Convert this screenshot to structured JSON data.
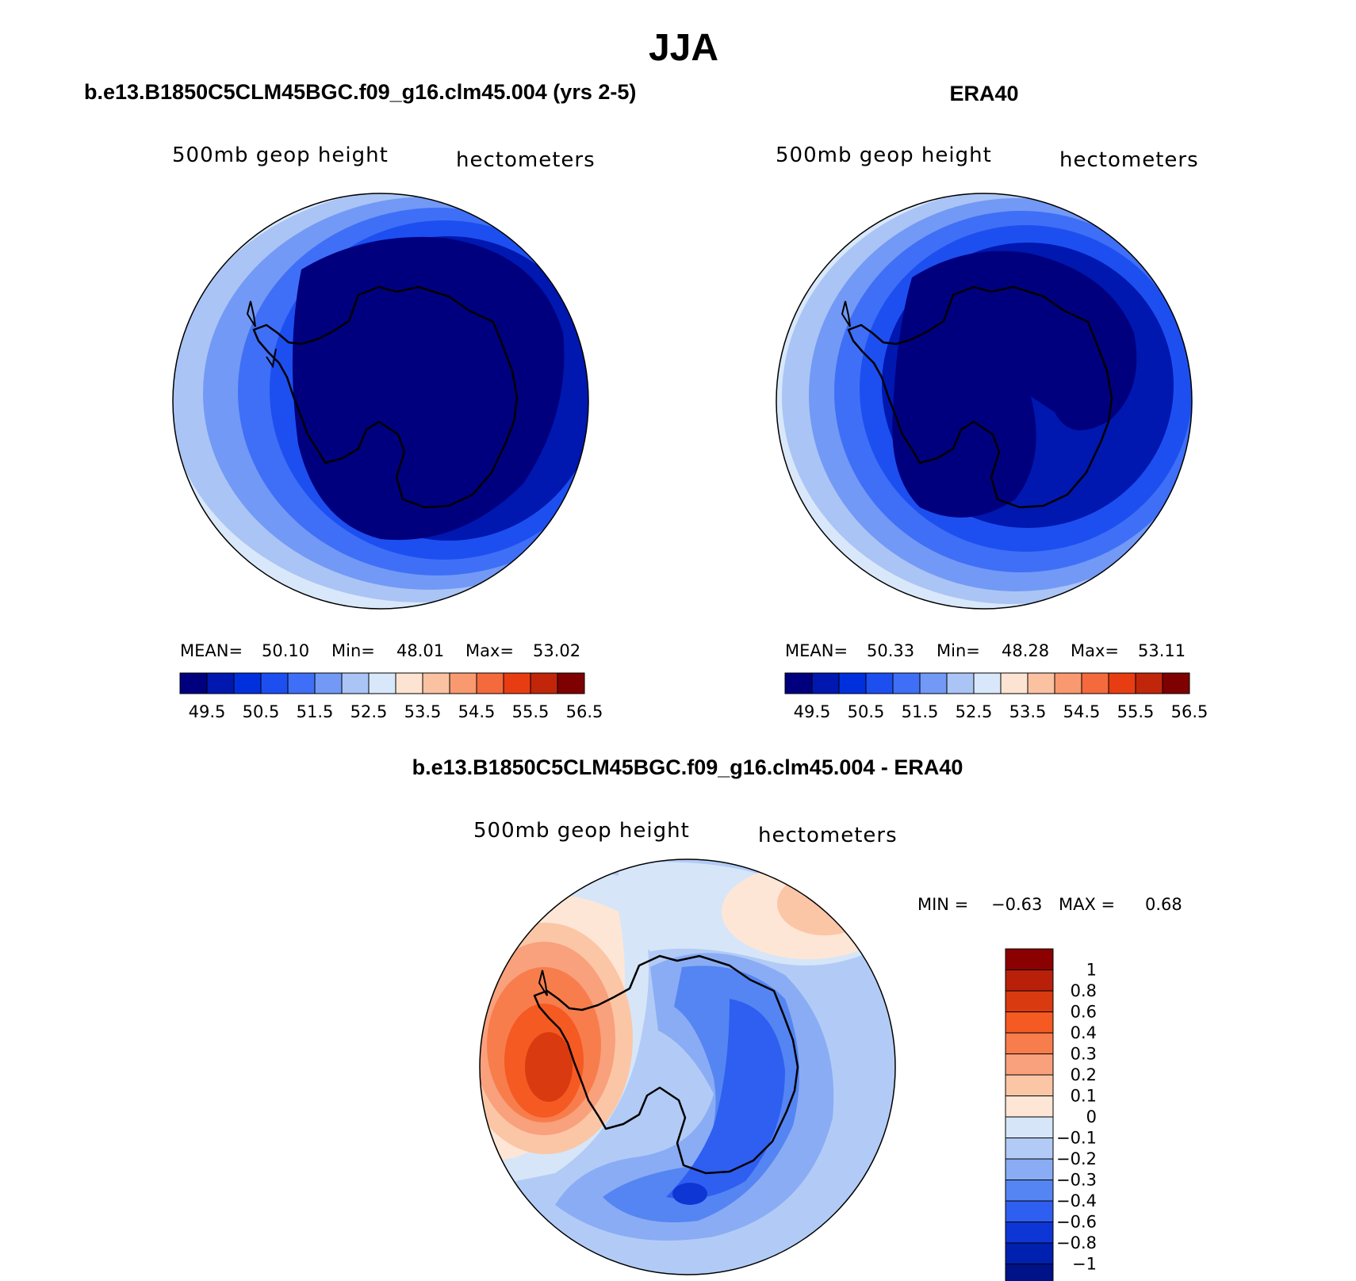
{
  "figure": {
    "title": "JJA"
  },
  "panels": {
    "model": {
      "title": "b.e13.B1850C5CLM45BGC.f09_g16.clm45.004 (yrs 2-5)",
      "variable": "500mb geop height",
      "units": "hectometers",
      "mean_label": "MEAN=",
      "mean": "50.10",
      "min_label": "Min=",
      "min": "48.01",
      "max_label": "Max=",
      "max": "53.02"
    },
    "obs": {
      "title": "ERA40",
      "variable": "500mb geop height",
      "units": "hectometers",
      "mean_label": "MEAN=",
      "mean": "50.33",
      "min_label": "Min=",
      "min": "48.28",
      "max_label": "Max=",
      "max": "53.11"
    },
    "diff": {
      "title": "b.e13.B1850C5CLM45BGC.f09_g16.clm45.004 - ERA40",
      "variable": "500mb geop height",
      "units": "hectometers",
      "min_label": "MIN =",
      "min": "−0.63",
      "max_label": "MAX =",
      "max": "0.68"
    }
  },
  "chart_data": [
    {
      "type": "heatmap",
      "projection": "south-polar-stereographic",
      "title": "b.e13.B1850C5CLM45BGC.f09_g16.clm45.004 (yrs 2-5)",
      "variable": "500mb geop height",
      "units": "hectometers",
      "stats": {
        "mean": 50.1,
        "min": 48.01,
        "max": 53.02
      },
      "levels": [
        49.5,
        50,
        50.5,
        51,
        51.5,
        52,
        52.5,
        53,
        53.5,
        54,
        54.5,
        55,
        55.5,
        56,
        56.5
      ],
      "tick_labels": [
        "49.5",
        "50.5",
        "51.5",
        "52.5",
        "53.5",
        "54.5",
        "55.5",
        "56.5"
      ],
      "colors": [
        "#00007f",
        "#0018b0",
        "#0030dd",
        "#1d4ff0",
        "#3f6ff7",
        "#7299f5",
        "#aac4f5",
        "#d8e8fa",
        "#fde4d2",
        "#fbc2a2",
        "#f99970",
        "#f46a3d",
        "#e83d12",
        "#c1260a",
        "#7f0000"
      ]
    },
    {
      "type": "heatmap",
      "projection": "south-polar-stereographic",
      "title": "ERA40",
      "variable": "500mb geop height",
      "units": "hectometers",
      "stats": {
        "mean": 50.33,
        "min": 48.28,
        "max": 53.11
      },
      "levels": [
        49.5,
        50,
        50.5,
        51,
        51.5,
        52,
        52.5,
        53,
        53.5,
        54,
        54.5,
        55,
        55.5,
        56,
        56.5
      ],
      "tick_labels": [
        "49.5",
        "50.5",
        "51.5",
        "52.5",
        "53.5",
        "54.5",
        "55.5",
        "56.5"
      ],
      "colors": [
        "#00007f",
        "#0018b0",
        "#0030dd",
        "#1d4ff0",
        "#3f6ff7",
        "#7299f5",
        "#aac4f5",
        "#d8e8fa",
        "#fde4d2",
        "#fbc2a2",
        "#f99970",
        "#f46a3d",
        "#e83d12",
        "#c1260a",
        "#7f0000"
      ]
    },
    {
      "type": "heatmap",
      "projection": "south-polar-stereographic",
      "title": "b.e13.B1850C5CLM45BGC.f09_g16.clm45.004 - ERA40",
      "variable": "500mb geop height",
      "units": "hectometers",
      "stats": {
        "min": -0.63,
        "max": 0.68
      },
      "levels": [
        1,
        0.8,
        0.6,
        0.4,
        0.3,
        0.2,
        0.1,
        0,
        -0.1,
        -0.2,
        -0.3,
        -0.4,
        -0.6,
        -0.8,
        -1
      ],
      "tick_labels": [
        "1",
        "0.8",
        "0.6",
        "0.4",
        "0.3",
        "0.2",
        "0.1",
        "0",
        "−0.1",
        "−0.2",
        "−0.3",
        "−0.4",
        "−0.6",
        "−0.8",
        "−1"
      ],
      "colors": [
        "#8b0000",
        "#b8200a",
        "#d93a10",
        "#f55a22",
        "#f87d4c",
        "#f9a07c",
        "#fbc6a6",
        "#fee6d6",
        "#d6e6f8",
        "#b2cbf6",
        "#8aacf4",
        "#5585f2",
        "#2f5ff0",
        "#0d36d5",
        "#0020b0",
        "#001288"
      ]
    }
  ]
}
